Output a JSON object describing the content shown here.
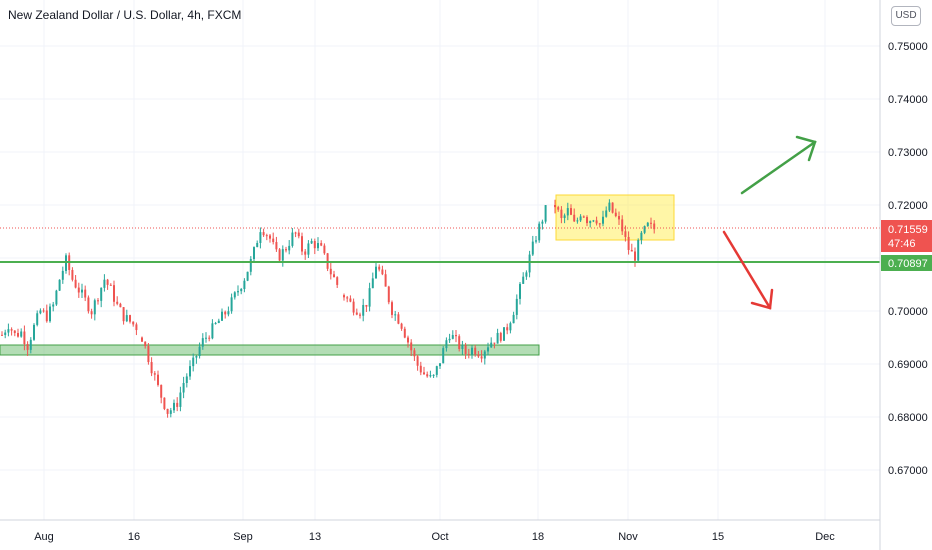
{
  "header": {
    "title": "New Zealand Dollar / U.S. Dollar, 4h, FXCM",
    "currency_button": "USD"
  },
  "price_labels": {
    "last_price": "0.71559",
    "countdown": "47:46",
    "line_level": "0.70897"
  },
  "colors": {
    "up": "#26a69a",
    "down": "#ef5350",
    "level_line": "#4caf50",
    "zone_fill": "#81c784",
    "range_box": "#ffeb3b",
    "arrow_up": "#43a047",
    "arrow_down": "#e53935"
  },
  "chart_data": {
    "type": "candlestick",
    "y_ticks": [
      "0.75000",
      "0.74000",
      "0.73000",
      "0.72000",
      "0.70000",
      "0.69000",
      "0.68000",
      "0.67000"
    ],
    "x_ticks": [
      "Aug",
      "16",
      "Sep",
      "13",
      "Oct",
      "18",
      "Nov",
      "15",
      "Dec"
    ],
    "ylim": [
      0.6625,
      0.7575
    ],
    "horizontal_line": 0.70897,
    "support_zone": [
      0.6932,
      0.6951
    ],
    "range_box": {
      "from": "Oct 21",
      "to": "Nov 8",
      "low": 0.714,
      "high": 0.722
    },
    "last_price": 0.71559,
    "price_path": [
      [
        0.6955,
        0.6975,
        0.6955,
        0.696,
        0.6935,
        0.697,
        0.7,
        0.699,
        0.701,
        0.706,
        0.7095,
        0.706,
        0.704,
        0.702,
        0.7,
        0.703,
        0.706,
        0.704,
        0.701,
        0.699,
        0.698,
        0.697
      ],
      [
        0.695,
        0.69,
        0.685,
        0.681,
        0.682,
        0.687,
        0.69,
        0.694,
        0.696,
        0.698,
        0.7,
        0.703,
        0.706,
        0.71,
        0.716,
        0.714,
        0.71,
        0.712,
        0.715,
        0.711,
        0.713,
        0.712,
        0.708,
        0.705
      ],
      [
        0.703,
        0.701,
        0.7,
        0.702,
        0.709,
        0.705,
        0.7,
        0.698,
        0.694,
        0.69,
        0.688,
        0.687,
        0.691,
        0.696,
        0.694,
        0.692,
        0.693,
        0.692,
        0.694,
        0.695,
        0.696,
        0.7,
        0.705,
        0.71,
        0.715,
        0.719
      ],
      [
        0.72,
        0.717,
        0.719,
        0.716,
        0.719,
        0.717,
        0.718,
        0.716,
        0.72,
        0.718,
        0.716,
        0.712,
        0.71,
        0.714,
        0.716,
        0.7155
      ]
    ]
  }
}
